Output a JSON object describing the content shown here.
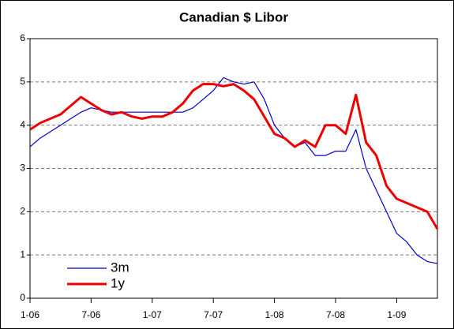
{
  "chart_data": {
    "type": "line",
    "title": "Canadian $ Libor",
    "x": [
      "2006-01",
      "2006-02",
      "2006-03",
      "2006-04",
      "2006-05",
      "2006-06",
      "2006-07",
      "2006-08",
      "2006-09",
      "2006-10",
      "2006-11",
      "2006-12",
      "2007-01",
      "2007-02",
      "2007-03",
      "2007-04",
      "2007-05",
      "2007-06",
      "2007-07",
      "2007-08",
      "2007-09",
      "2007-10",
      "2007-11",
      "2007-12",
      "2008-01",
      "2008-02",
      "2008-03",
      "2008-04",
      "2008-05",
      "2008-06",
      "2008-07",
      "2008-08",
      "2008-09",
      "2008-10",
      "2008-11",
      "2008-12",
      "2009-01",
      "2009-02",
      "2009-03",
      "2009-04",
      "2009-05"
    ],
    "series": [
      {
        "name": "3m",
        "color": "#0000cc",
        "values": [
          3.5,
          3.7,
          3.85,
          4.0,
          4.15,
          4.3,
          4.4,
          4.35,
          4.3,
          4.3,
          4.3,
          4.3,
          4.3,
          4.3,
          4.3,
          4.3,
          4.4,
          4.6,
          4.8,
          5.1,
          5.0,
          4.95,
          5.0,
          4.6,
          4.0,
          3.7,
          3.5,
          3.6,
          3.3,
          3.3,
          3.4,
          3.4,
          3.9,
          3.0,
          2.5,
          2.0,
          1.5,
          1.3,
          1.0,
          0.85,
          0.8
        ]
      },
      {
        "name": "1y",
        "color": "#ee0000",
        "values": [
          3.9,
          4.05,
          4.15,
          4.25,
          4.45,
          4.65,
          4.5,
          4.35,
          4.25,
          4.3,
          4.2,
          4.15,
          4.2,
          4.2,
          4.3,
          4.5,
          4.8,
          4.95,
          4.95,
          4.9,
          4.95,
          4.8,
          4.6,
          4.2,
          3.8,
          3.7,
          3.5,
          3.65,
          3.5,
          4.0,
          4.0,
          3.8,
          4.7,
          3.6,
          3.3,
          2.6,
          2.3,
          2.2,
          2.1,
          2.0,
          1.6
        ]
      }
    ],
    "xlim": [
      "2006-01",
      "2009-05"
    ],
    "xticks": [
      {
        "value": "2006-01",
        "label": "1-06"
      },
      {
        "value": "2006-07",
        "label": "7-06"
      },
      {
        "value": "2007-01",
        "label": "1-07"
      },
      {
        "value": "2007-07",
        "label": "7-07"
      },
      {
        "value": "2008-01",
        "label": "1-08"
      },
      {
        "value": "2008-07",
        "label": "7-08"
      },
      {
        "value": "2009-01",
        "label": "1-09"
      }
    ],
    "ylim": [
      0,
      6
    ],
    "yticks": [
      0,
      1,
      2,
      3,
      4,
      5,
      6
    ],
    "grid": true
  }
}
